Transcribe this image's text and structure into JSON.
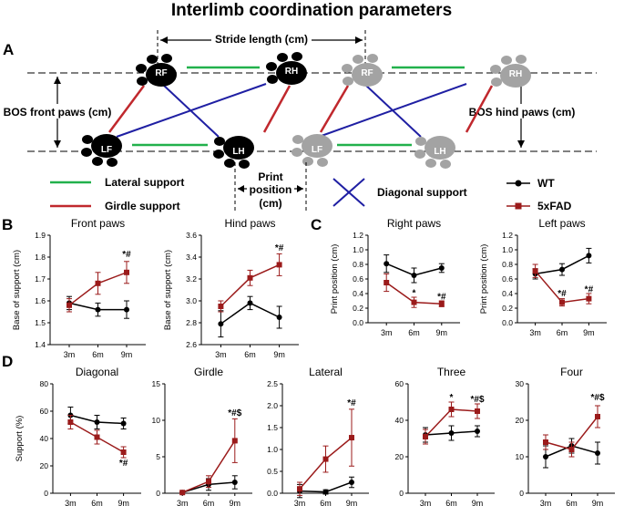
{
  "figure": {
    "title": "Interlimb coordination parameters",
    "panel_letters": {
      "A": "A",
      "B": "B",
      "C": "C",
      "D": "D"
    },
    "diagram": {
      "stride_label": "Stride length (cm)",
      "bos_front_label": "BOS front paws (cm)",
      "bos_hind_label": "BOS hind paws (cm)",
      "print_position_line1": "Print",
      "print_position_line2": "position",
      "print_position_line3": "(cm)",
      "lateral_support": "Lateral support",
      "girdle_support": "Girdle support",
      "diagonal_support": "Diagonal support",
      "paw_labels": {
        "RF": "RF",
        "RH": "RH",
        "LF": "LF",
        "LH": "LH"
      },
      "colors": {
        "lateral": "#22b14c",
        "girdle": "#c0282d",
        "diagonal": "#1f1fa3"
      }
    },
    "legend": {
      "wt": "WT",
      "fad": "5xFAD",
      "colors": {
        "wt": "#000000",
        "fad": "#9b1b1b"
      }
    }
  },
  "chart_data": [
    {
      "id": "front_paws",
      "type": "line",
      "title": "Front paws",
      "ylabel": "Base of support (cm)",
      "categories": [
        "3m",
        "6m",
        "9m"
      ],
      "ylim": [
        1.4,
        1.9
      ],
      "yticks": [
        "1.4",
        "1.5",
        "1.6",
        "1.7",
        "1.8",
        "1.9"
      ],
      "series": [
        {
          "name": "WT",
          "values": [
            1.59,
            1.56,
            1.56
          ],
          "err": [
            0.03,
            0.03,
            0.04
          ]
        },
        {
          "name": "5xFAD",
          "values": [
            1.58,
            1.68,
            1.73
          ],
          "err": [
            0.03,
            0.05,
            0.05
          ]
        }
      ],
      "annotations": [
        {
          "text": "*#",
          "x": "9m",
          "y": 1.8
        }
      ]
    },
    {
      "id": "hind_paws",
      "type": "line",
      "title": "Hind paws",
      "ylabel": "Base of support (cm)",
      "categories": [
        "3m",
        "6m",
        "9m"
      ],
      "ylim": [
        2.6,
        3.6
      ],
      "yticks": [
        "2.6",
        "2.8",
        "3.0",
        "3.2",
        "3.4",
        "3.6"
      ],
      "series": [
        {
          "name": "WT",
          "values": [
            2.79,
            2.98,
            2.85
          ],
          "err": [
            0.12,
            0.06,
            0.1
          ]
        },
        {
          "name": "5xFAD",
          "values": [
            2.95,
            3.21,
            3.33
          ],
          "err": [
            0.05,
            0.07,
            0.1
          ]
        }
      ],
      "annotations": [
        {
          "text": "*#",
          "x": "9m",
          "y": 3.46
        }
      ]
    },
    {
      "id": "right_paws",
      "type": "line",
      "title": "Right paws",
      "ylabel": "Print position (cm)",
      "categories": [
        "3m",
        "6m",
        "9m"
      ],
      "ylim": [
        0.0,
        1.2
      ],
      "yticks": [
        "0.0",
        "0.2",
        "0.4",
        "0.6",
        "0.8",
        "1.0",
        "1.2"
      ],
      "series": [
        {
          "name": "WT",
          "values": [
            0.81,
            0.65,
            0.75
          ],
          "err": [
            0.12,
            0.1,
            0.06
          ]
        },
        {
          "name": "5xFAD",
          "values": [
            0.55,
            0.28,
            0.26
          ],
          "err": [
            0.12,
            0.07,
            0.04
          ]
        }
      ],
      "annotations": [
        {
          "text": "*",
          "x": "6m",
          "y": 0.37
        },
        {
          "text": "*#",
          "x": "9m",
          "y": 0.32
        }
      ]
    },
    {
      "id": "left_paws",
      "type": "line",
      "title": "Left paws",
      "ylabel": "Print position (cm)",
      "categories": [
        "3m",
        "6m",
        "9m"
      ],
      "ylim": [
        0.0,
        1.2
      ],
      "yticks": [
        "0.0",
        "0.2",
        "0.4",
        "0.6",
        "0.8",
        "1.0",
        "1.2"
      ],
      "series": [
        {
          "name": "WT",
          "values": [
            0.67,
            0.73,
            0.92
          ],
          "err": [
            0.07,
            0.08,
            0.1
          ]
        },
        {
          "name": "5xFAD",
          "values": [
            0.71,
            0.28,
            0.33
          ],
          "err": [
            0.09,
            0.05,
            0.07
          ]
        }
      ],
      "annotations": [
        {
          "text": "*#",
          "x": "6m",
          "y": 0.36
        },
        {
          "text": "*#",
          "x": "9m",
          "y": 0.42
        }
      ]
    },
    {
      "id": "diagonal",
      "type": "line",
      "title": "Diagonal",
      "ylabel": "Support (%)",
      "categories": [
        "3m",
        "6m",
        "9m"
      ],
      "ylim": [
        0,
        80
      ],
      "yticks": [
        "0",
        "20",
        "40",
        "60",
        "80"
      ],
      "series": [
        {
          "name": "WT",
          "values": [
            57,
            52,
            51
          ],
          "err": [
            6,
            5,
            4
          ]
        },
        {
          "name": "5xFAD",
          "values": [
            52,
            41,
            30
          ],
          "err": [
            5,
            5,
            4
          ]
        }
      ],
      "annotations": [
        {
          "text": "*#",
          "x": "9m",
          "y": 20
        }
      ]
    },
    {
      "id": "girdle",
      "type": "line",
      "title": "Girdle",
      "ylabel": "",
      "categories": [
        "3m",
        "6m",
        "9m"
      ],
      "ylim": [
        0,
        15
      ],
      "yticks": [
        "0",
        "5",
        "10",
        "15"
      ],
      "series": [
        {
          "name": "WT",
          "values": [
            0.1,
            1.2,
            1.5
          ],
          "err": [
            0.1,
            0.8,
            0.9
          ]
        },
        {
          "name": "5xFAD",
          "values": [
            0.1,
            1.6,
            7.2
          ],
          "err": [
            0.1,
            0.8,
            3.0
          ]
        }
      ],
      "annotations": [
        {
          "text": "*#$",
          "x": "9m",
          "y": 10.6
        }
      ]
    },
    {
      "id": "lateral",
      "type": "line",
      "title": "Lateral",
      "ylabel": "",
      "categories": [
        "3m",
        "6m",
        "9m"
      ],
      "ylim": [
        0.0,
        2.5
      ],
      "yticks": [
        "0.0",
        "0.5",
        "1.0",
        "1.5",
        "2.0",
        "2.5"
      ],
      "series": [
        {
          "name": "WT",
          "values": [
            0.05,
            0.03,
            0.25
          ],
          "err": [
            0.15,
            0.05,
            0.12
          ]
        },
        {
          "name": "5xFAD",
          "values": [
            0.1,
            0.78,
            1.27
          ],
          "err": [
            0.15,
            0.3,
            0.65
          ]
        }
      ],
      "annotations": [
        {
          "text": "*#",
          "x": "9m",
          "y": 2.0
        }
      ]
    },
    {
      "id": "three",
      "type": "line",
      "title": "Three",
      "ylabel": "",
      "categories": [
        "3m",
        "6m",
        "9m"
      ],
      "ylim": [
        0,
        60
      ],
      "yticks": [
        "0",
        "20",
        "40",
        "60"
      ],
      "series": [
        {
          "name": "WT",
          "values": [
            32,
            33,
            34
          ],
          "err": [
            4,
            4,
            3
          ]
        },
        {
          "name": "5xFAD",
          "values": [
            31,
            46,
            45
          ],
          "err": [
            4,
            4,
            4
          ]
        }
      ],
      "annotations": [
        {
          "text": "*",
          "x": "6m",
          "y": 51
        },
        {
          "text": "*#$",
          "x": "9m",
          "y": 50
        }
      ]
    },
    {
      "id": "four",
      "type": "line",
      "title": "Four",
      "ylabel": "",
      "categories": [
        "3m",
        "6m",
        "9m"
      ],
      "ylim": [
        0,
        30
      ],
      "yticks": [
        "0",
        "10",
        "20",
        "30"
      ],
      "series": [
        {
          "name": "WT",
          "values": [
            10,
            13,
            11
          ],
          "err": [
            3,
            2,
            3
          ]
        },
        {
          "name": "5xFAD",
          "values": [
            14,
            12,
            21
          ],
          "err": [
            2,
            2,
            3
          ]
        }
      ],
      "annotations": [
        {
          "text": "*#$",
          "x": "9m",
          "y": 25.5
        }
      ]
    }
  ]
}
